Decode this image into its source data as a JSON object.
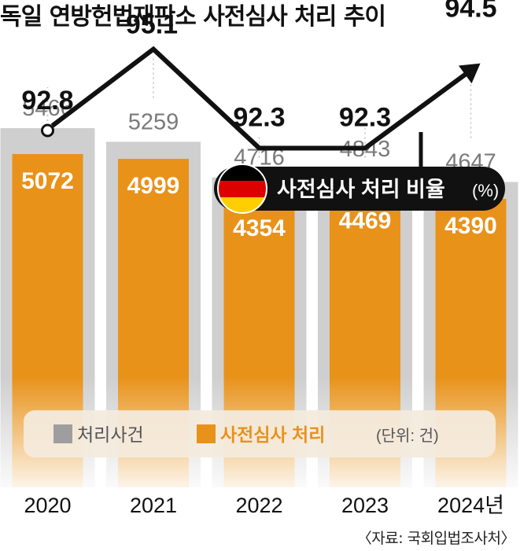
{
  "title": "독일 연방헌법재판소 사전심사 처리 추이",
  "source": "〈자료: 국회입법조사처〉",
  "colors": {
    "total_bar": "#cfcfcf",
    "total_label": "#7a7a7a",
    "review_bar": "#e8921a",
    "line": "#111111",
    "background": "#ffffff"
  },
  "line_legend": {
    "label": "사전심사 처리 비율",
    "unit": "(%)",
    "icon": "germany-flag-icon"
  },
  "legend": {
    "items": [
      {
        "label": "처리사건",
        "color": "#9e9e9e"
      },
      {
        "label": "사전심사 처리",
        "color": "#e8921a"
      }
    ],
    "unit_note": "(단위: 건)"
  },
  "chart_data": {
    "type": "bar",
    "title": "독일 연방헌법재판소 사전심사 처리 추이",
    "categories": [
      "2020",
      "2021",
      "2022",
      "2023",
      "2024년"
    ],
    "series": [
      {
        "name": "처리사건",
        "values": [
          5466,
          5259,
          4716,
          4843,
          4647
        ]
      },
      {
        "name": "사전심사 처리",
        "values": [
          5072,
          4999,
          4354,
          4469,
          4390
        ]
      }
    ],
    "line_series": {
      "name": "사전심사 처리 비율",
      "unit": "%",
      "values": [
        92.8,
        95.1,
        92.3,
        92.3,
        94.5
      ]
    },
    "units": "건"
  }
}
